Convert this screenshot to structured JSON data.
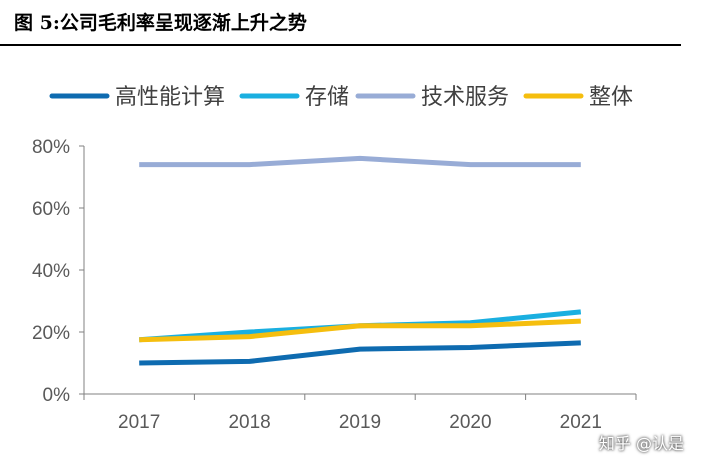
{
  "figure_title": "图 5:公司毛利率呈现逐渐上升之势",
  "watermark": "知乎 @认是",
  "chart_data": {
    "type": "line",
    "title": "",
    "xlabel": "",
    "ylabel": "",
    "categories": [
      "2017",
      "2018",
      "2019",
      "2020",
      "2021"
    ],
    "ylim": [
      0,
      80
    ],
    "yticks": [
      0,
      20,
      40,
      60,
      80
    ],
    "ytick_labels": [
      "0%",
      "20%",
      "40%",
      "60%",
      "80%"
    ],
    "grid": false,
    "legend_position": "top",
    "series": [
      {
        "name": "高性能计算",
        "color": "#0E6BB0",
        "values": [
          10,
          10.5,
          14.5,
          15,
          16.5
        ]
      },
      {
        "name": "存储",
        "color": "#1AAFE0",
        "values": [
          17.5,
          20,
          22,
          23,
          26.5
        ]
      },
      {
        "name": "技术服务",
        "color": "#98ACD6",
        "values": [
          74,
          74,
          76,
          74,
          74
        ]
      },
      {
        "name": "整体",
        "color": "#F5BE0E",
        "values": [
          17.5,
          18.5,
          22,
          22,
          23.5
        ]
      }
    ]
  }
}
